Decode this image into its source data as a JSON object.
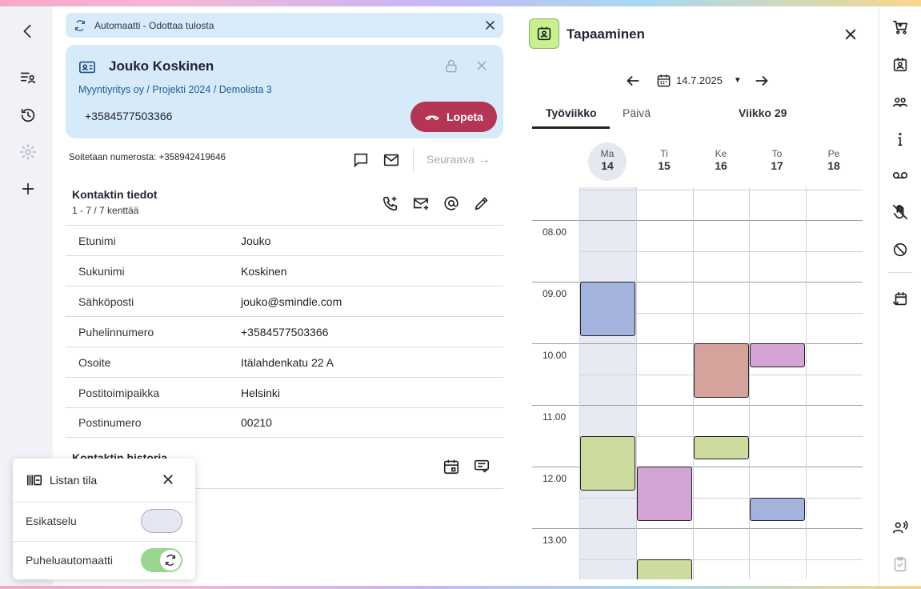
{
  "banner": {
    "text": "Automaatti - Odottaa tulosta"
  },
  "contact": {
    "name": "Jouko Koskinen",
    "crumbs": [
      "Myyntiyritys oy",
      "Projekti 2024",
      "Demolista 3"
    ],
    "phone": "+3584577503366",
    "hangup_label": "Lopeta"
  },
  "call": {
    "from_label": "Soitetaan numerosta:",
    "from_number": "+358942419646",
    "next_label": "Seuraava"
  },
  "details": {
    "title": "Kontaktin tiedot",
    "subtitle": "1 - 7 / 7 kenttää",
    "rows": [
      {
        "key": "Etunimi",
        "value": "Jouko"
      },
      {
        "key": "Sukunimi",
        "value": "Koskinen"
      },
      {
        "key": "Sähköposti",
        "value": "jouko@smindle.com"
      },
      {
        "key": "Puhelinnumero",
        "value": "+3584577503366"
      },
      {
        "key": "Osoite",
        "value": "Itälahdenkatu 22 A"
      },
      {
        "key": "Postitoimipaikka",
        "value": "Helsinki"
      },
      {
        "key": "Postinumero",
        "value": "00210"
      }
    ]
  },
  "history": {
    "title": "Kontaktin historia"
  },
  "list_state": {
    "title": "Listan tila",
    "preview_label": "Esikatselu",
    "preview_on": false,
    "autodialer_label": "Puheluautomaatti",
    "autodialer_on": true
  },
  "calendar": {
    "title": "Tapaaminen",
    "date": "14.7.2025",
    "tabs": [
      "Työviikko",
      "Päivä"
    ],
    "active_tab": "Työviikko",
    "week_label": "Viikko 29",
    "days": [
      {
        "name": "Ma",
        "date": "14"
      },
      {
        "name": "Ti",
        "date": "15"
      },
      {
        "name": "Ke",
        "date": "16"
      },
      {
        "name": "To",
        "date": "17"
      },
      {
        "name": "Pe",
        "date": "18"
      }
    ],
    "hours": [
      "08.00",
      "09.00",
      "10.00",
      "11.00",
      "12.00",
      "13.00"
    ],
    "colors": {
      "blue": "#a4b2de",
      "rose": "#d6a29c",
      "pink": "#d4a4d6",
      "green": "#cddc9e",
      "today": "#e8eaf2",
      "accent": "#b43654"
    }
  }
}
